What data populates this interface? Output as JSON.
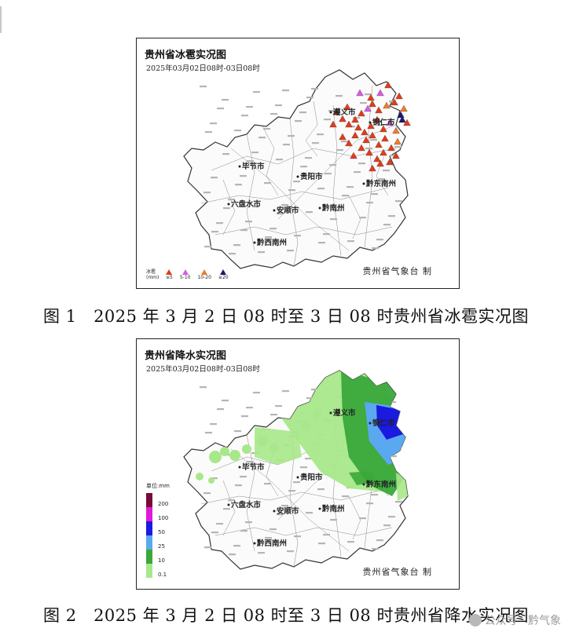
{
  "hail_map": {
    "title": "贵州省冰雹实况图",
    "subtitle": "2025年03月02日08时-03日08时",
    "credit": "贵州省气象台 制",
    "legend_title": "冰雹 (mm)",
    "legend": [
      {
        "label": "≤5",
        "color": "#e03b1c"
      },
      {
        "label": "5-10",
        "color": "#d65be0"
      },
      {
        "label": "10-20",
        "color": "#f07a2a"
      },
      {
        "label": "≥20",
        "color": "#1a1a6e"
      }
    ],
    "cities": [
      "遵义市",
      "铜仁市",
      "毕节市",
      "贵阳市",
      "黔东南州",
      "六盘水市",
      "安顺市",
      "黔南州",
      "黔西南州"
    ]
  },
  "rain_map": {
    "title": "贵州省降水实况图",
    "subtitle": "2025年03月02日08时-03日08时",
    "credit": "贵州省气象台 制",
    "legend_title": "单位:mm",
    "legend": [
      {
        "label": "200",
        "color": "#7a0a3a"
      },
      {
        "label": "100",
        "color": "#e01ad8"
      },
      {
        "label": "50",
        "color": "#1a1ae0"
      },
      {
        "label": "25",
        "color": "#5aa9f0"
      },
      {
        "label": "10",
        "color": "#3aa83a"
      },
      {
        "label": "0.1",
        "color": "#a8e88a"
      }
    ],
    "cities": [
      "遵义市",
      "铜仁市",
      "毕节市",
      "贵阳市",
      "黔东南州",
      "六盘水市",
      "安顺市",
      "黔南州",
      "黔西南州"
    ]
  },
  "captions": {
    "fig1": "图 1　2025 年 3 月 2 日 08 时至 3 日 08 时贵州省冰雹实况图",
    "fig2": "图 2　2025 年 3 月 2 日 08 时至 3 日 08 时贵州省降水实况图"
  },
  "watermark": "公众号 · 黔气象"
}
